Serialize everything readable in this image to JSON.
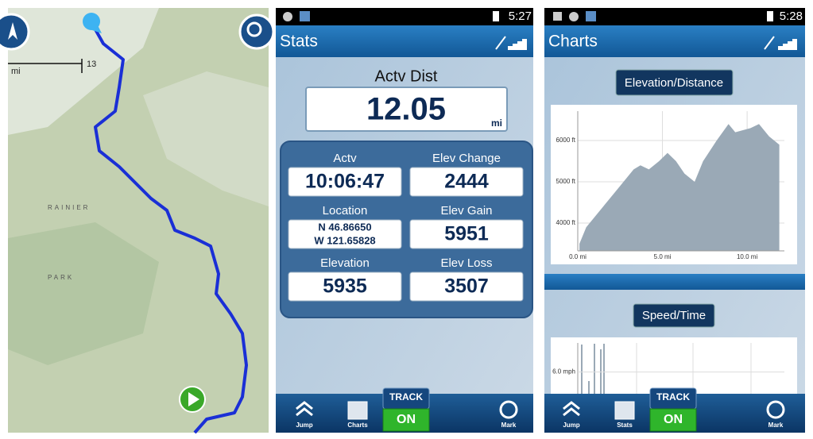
{
  "map": {
    "scale_value": "13",
    "scale_unit": "mi",
    "labels": [
      "RAINIER",
      "PARK"
    ]
  },
  "stats_screen": {
    "status_time": "5:27",
    "title": "Stats",
    "headline_label": "Actv Dist",
    "headline_value": "12.05",
    "headline_unit": "mi",
    "cells": [
      {
        "label": "Actv",
        "value": "10:06:47"
      },
      {
        "label": "Elev Change",
        "value": "2444"
      },
      {
        "label": "Location",
        "value": [
          "N 46.86650",
          "W 121.65828"
        ]
      },
      {
        "label": "Elev Gain",
        "value": "5951"
      },
      {
        "label": "Elevation",
        "value": "5935"
      },
      {
        "label": "Elev Loss",
        "value": "3507"
      }
    ],
    "toolbar": {
      "left": "Jump",
      "middle": "Charts",
      "track": "TRACK",
      "track_state": "ON",
      "right": "Mark"
    }
  },
  "charts_screen": {
    "status_time": "5:28",
    "title": "Charts",
    "elevation_chart": {
      "type": "area",
      "title": "Elevation/Distance",
      "color": "#9aa9b6",
      "x": [
        0.1,
        0.5,
        1.5,
        2.5,
        3.3,
        3.7,
        4.2,
        4.8,
        5.3,
        5.8,
        6.3,
        6.9,
        7.4,
        8.2,
        8.9,
        9.3,
        10.2,
        10.7,
        11.3,
        11.9
      ],
      "values": [
        3500,
        3900,
        4400,
        4900,
        5300,
        5400,
        5300,
        5500,
        5700,
        5500,
        5200,
        5000,
        5500,
        6000,
        6400,
        6200,
        6300,
        6400,
        6100,
        5900
      ],
      "xlim": [
        0,
        12.2
      ],
      "ylim": [
        3327,
        6712
      ],
      "xticks": [
        {
          "value": 0,
          "label": "0.0 mi"
        },
        {
          "value": 5,
          "label": "5.0 mi"
        },
        {
          "value": 10,
          "label": "10.0 mi"
        }
      ],
      "yticks": [
        {
          "value": 4000,
          "label": "4000 ft"
        },
        {
          "value": 5000,
          "label": "5000 ft"
        },
        {
          "value": 6000,
          "label": "6000 ft"
        }
      ]
    },
    "speed_chart": {
      "title": "Speed/Time",
      "ylim": [
        0,
        14
      ],
      "yticks": [
        {
          "value": 6,
          "label": "6.0 mph"
        }
      ]
    },
    "toolbar": {
      "left": "Jump",
      "middle": "Stats",
      "track": "TRACK",
      "track_state": "ON",
      "right": "Mark"
    }
  }
}
